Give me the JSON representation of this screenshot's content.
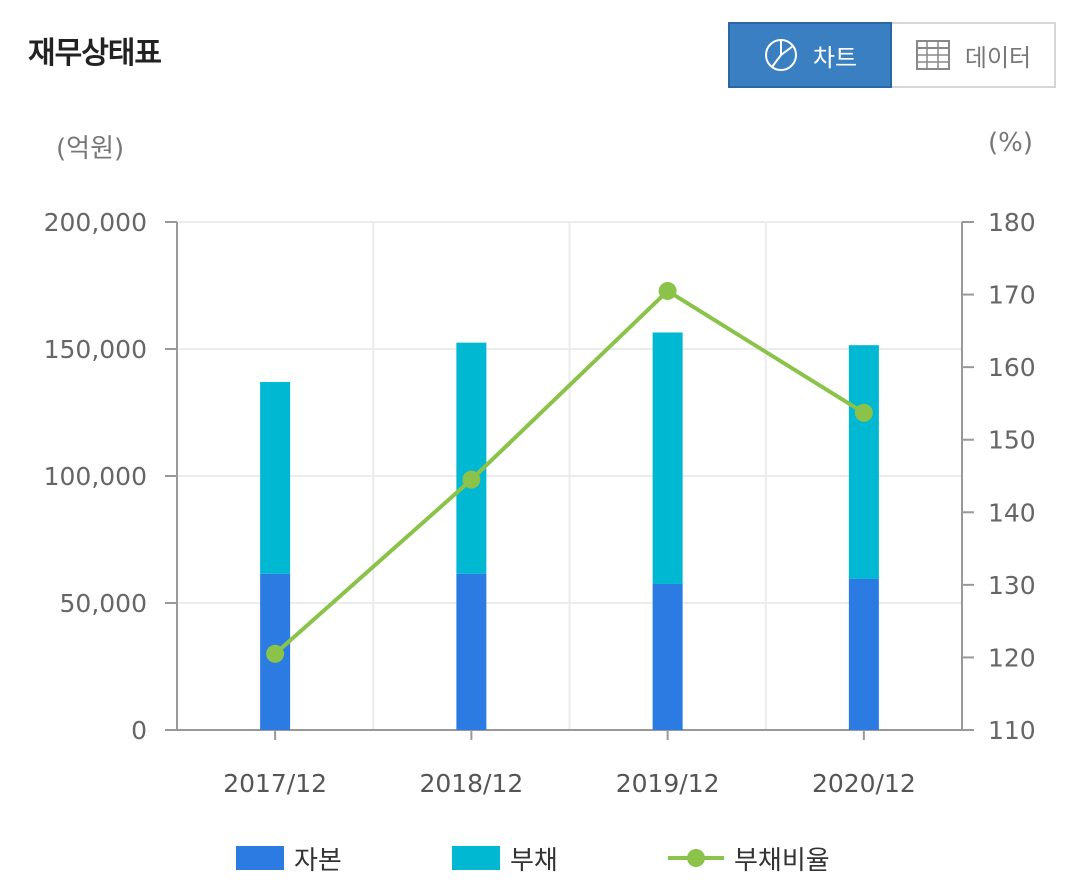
{
  "header": {
    "title": "재무상태표",
    "chart_button_label": "차트",
    "data_button_label": "데이터"
  },
  "units": {
    "left": "(억원)",
    "right": "(%)"
  },
  "colors": {
    "capital": "#2b7be3",
    "liabilities": "#00b8d1",
    "ratio": "#8bc34a",
    "active_button": "#3a7fc1"
  },
  "chart_data": {
    "type": "bar",
    "categories": [
      "2017/12",
      "2018/12",
      "2019/12",
      "2020/12"
    ],
    "series": [
      {
        "name": "자본",
        "kind": "stacked-bar",
        "axis": "left",
        "values": [
          61500,
          61500,
          57500,
          59500
        ]
      },
      {
        "name": "부채",
        "kind": "stacked-bar",
        "axis": "left",
        "values": [
          75500,
          91000,
          99000,
          92000
        ]
      },
      {
        "name": "부채비율",
        "kind": "line",
        "axis": "right",
        "values": [
          120.5,
          144.5,
          170.5,
          153.7
        ]
      }
    ],
    "y_left": {
      "min": 0,
      "max": 200000,
      "ticks": [
        0,
        50000,
        100000,
        150000,
        200000
      ],
      "tick_labels": [
        "0",
        "50,000",
        "100,000",
        "150,000",
        "200,000"
      ]
    },
    "y_right": {
      "min": 110,
      "max": 180,
      "ticks": [
        110,
        120,
        130,
        140,
        150,
        160,
        170,
        180
      ],
      "tick_labels": [
        "110",
        "120",
        "130",
        "140",
        "150",
        "160",
        "170",
        "180"
      ]
    },
    "grid": true,
    "legend_position": "bottom"
  }
}
